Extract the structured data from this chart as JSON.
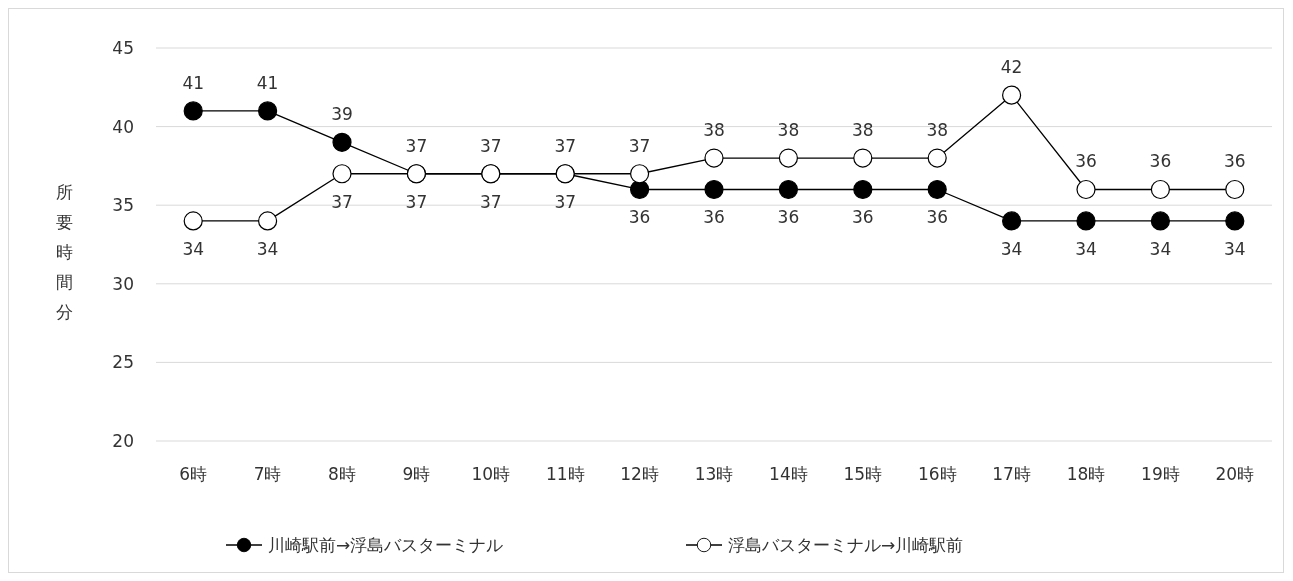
{
  "chart_data": {
    "type": "line",
    "ylabel": "所要時間分",
    "categories": [
      "6時",
      "7時",
      "8時",
      "9時",
      "10時",
      "11時",
      "12時",
      "13時",
      "14時",
      "15時",
      "16時",
      "17時",
      "18時",
      "19時",
      "20時"
    ],
    "series": [
      {
        "name": "川崎駅前→浮島バスターミナル",
        "color": "#000000",
        "values": [
          41,
          41,
          39,
          37,
          37,
          37,
          36,
          36,
          36,
          36,
          36,
          34,
          34,
          34,
          34
        ]
      },
      {
        "name": "浮島バスターミナル→川崎駅前",
        "color": "#000000",
        "values": [
          34,
          34,
          37,
          37,
          37,
          37,
          37,
          38,
          38,
          38,
          38,
          42,
          36,
          36,
          36
        ]
      }
    ],
    "ylim": [
      20,
      45
    ],
    "yticks": [
      20,
      25,
      30,
      35,
      40,
      45
    ],
    "grid": "y",
    "marker": "circle",
    "legend": "bottom",
    "data_labels": true
  }
}
